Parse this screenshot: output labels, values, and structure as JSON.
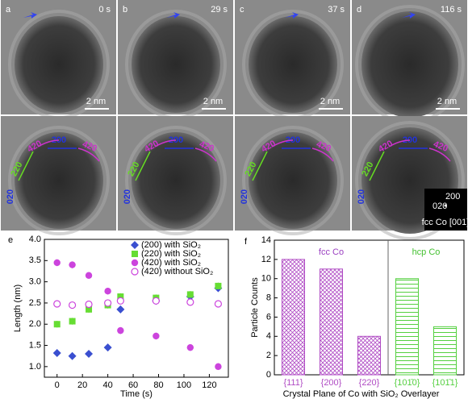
{
  "images": {
    "top": [
      {
        "letter": "a",
        "time": "0 s",
        "scale": "2 nm"
      },
      {
        "letter": "b",
        "time": "29 s",
        "scale": "2 nm"
      },
      {
        "letter": "c",
        "time": "37 s",
        "scale": "2 nm"
      },
      {
        "letter": "d",
        "time": "116 s",
        "scale": "2 nm"
      }
    ],
    "bottom": [
      {
        "labels": [
          "220",
          "420",
          "200",
          "420",
          "020"
        ]
      },
      {
        "labels": [
          "220",
          "420",
          "200",
          "420",
          "020"
        ]
      },
      {
        "labels": [
          "220",
          "420",
          "200",
          "420",
          "020"
        ]
      },
      {
        "labels": [
          "220",
          "420",
          "200",
          "420",
          "020"
        ]
      }
    ],
    "fft": {
      "labels": [
        "200",
        "020"
      ],
      "caption": "fcc Co [001]"
    }
  },
  "chart_data": [
    {
      "type": "scatter",
      "panel": "e",
      "x_label": "Time (s)",
      "y_label": "Length (nm)",
      "x": [
        0,
        12,
        25,
        40,
        50,
        78,
        105,
        127
      ],
      "series": [
        {
          "name": "(200) with SiO₂",
          "color": "#3a4fd0",
          "marker": "diamond",
          "values": [
            1.32,
            1.25,
            1.3,
            1.45,
            2.35,
            2.55,
            2.65,
            2.85
          ],
          "errors": [
            0.08,
            0.08,
            0.08,
            0.08,
            0.08,
            0.08,
            0.08,
            0.08
          ]
        },
        {
          "name": "(220) with SiO₂",
          "color": "#66dd33",
          "marker": "square",
          "values": [
            2.0,
            2.07,
            2.35,
            2.45,
            2.65,
            2.62,
            2.7,
            2.9
          ],
          "errors": [
            0.08,
            0.08,
            0.08,
            0.08,
            0.08,
            0.08,
            0.08,
            0.08
          ]
        },
        {
          "name": "(420) with SiO₂",
          "color": "#cc44dd",
          "marker": "circle",
          "values": [
            3.45,
            3.4,
            3.15,
            2.78,
            1.85,
            1.72,
            1.45,
            1.0
          ],
          "errors": [
            0.08,
            0.08,
            0.08,
            0.08,
            0.08,
            0.08,
            0.08,
            0.08
          ]
        },
        {
          "name": "(420) without SiO₂",
          "color": "#cc44dd",
          "marker": "open-circle",
          "values": [
            2.48,
            2.45,
            2.47,
            2.5,
            2.55,
            2.55,
            2.52,
            2.48
          ],
          "errors": [
            0.08,
            0.08,
            0.08,
            0.08,
            0.08,
            0.08,
            0.08,
            0.08
          ]
        }
      ],
      "xlim": [
        -10,
        135
      ],
      "xticks": [
        0,
        20,
        40,
        60,
        80,
        100,
        120
      ],
      "ylim": [
        0.75,
        4.0
      ],
      "yticks": [
        {
          "value": 1,
          "label": "1.0"
        },
        {
          "value": 1.5,
          "label": "1.5"
        },
        {
          "value": 2,
          "label": "2.0"
        },
        {
          "value": 2.5,
          "label": "2.5"
        },
        {
          "value": 3,
          "label": "3.0"
        },
        {
          "value": 3.5,
          "label": "3.5"
        },
        {
          "value": 4,
          "label": "4.0"
        }
      ]
    },
    {
      "type": "bar",
      "panel": "f",
      "x_label": "Crystal Plane of Co with SiO₂ Overlayer",
      "y_label": "Particle Counts",
      "categories": [
        "{111}",
        "{200}",
        "{220}",
        "{101̄0}",
        "{101̄1}"
      ],
      "values": [
        12,
        11,
        4,
        10,
        5
      ],
      "colors": [
        "#b04cc4",
        "#b04cc4",
        "#b04cc4",
        "#55d040",
        "#55d040"
      ],
      "groups": [
        {
          "name": "fcc Co",
          "color": "#9a3fc0"
        },
        {
          "name": "hcp Co",
          "color": "#44c030"
        }
      ],
      "ylim": [
        0,
        14
      ],
      "yticks": [
        0,
        2,
        4,
        6,
        8,
        10,
        12,
        14
      ]
    }
  ]
}
